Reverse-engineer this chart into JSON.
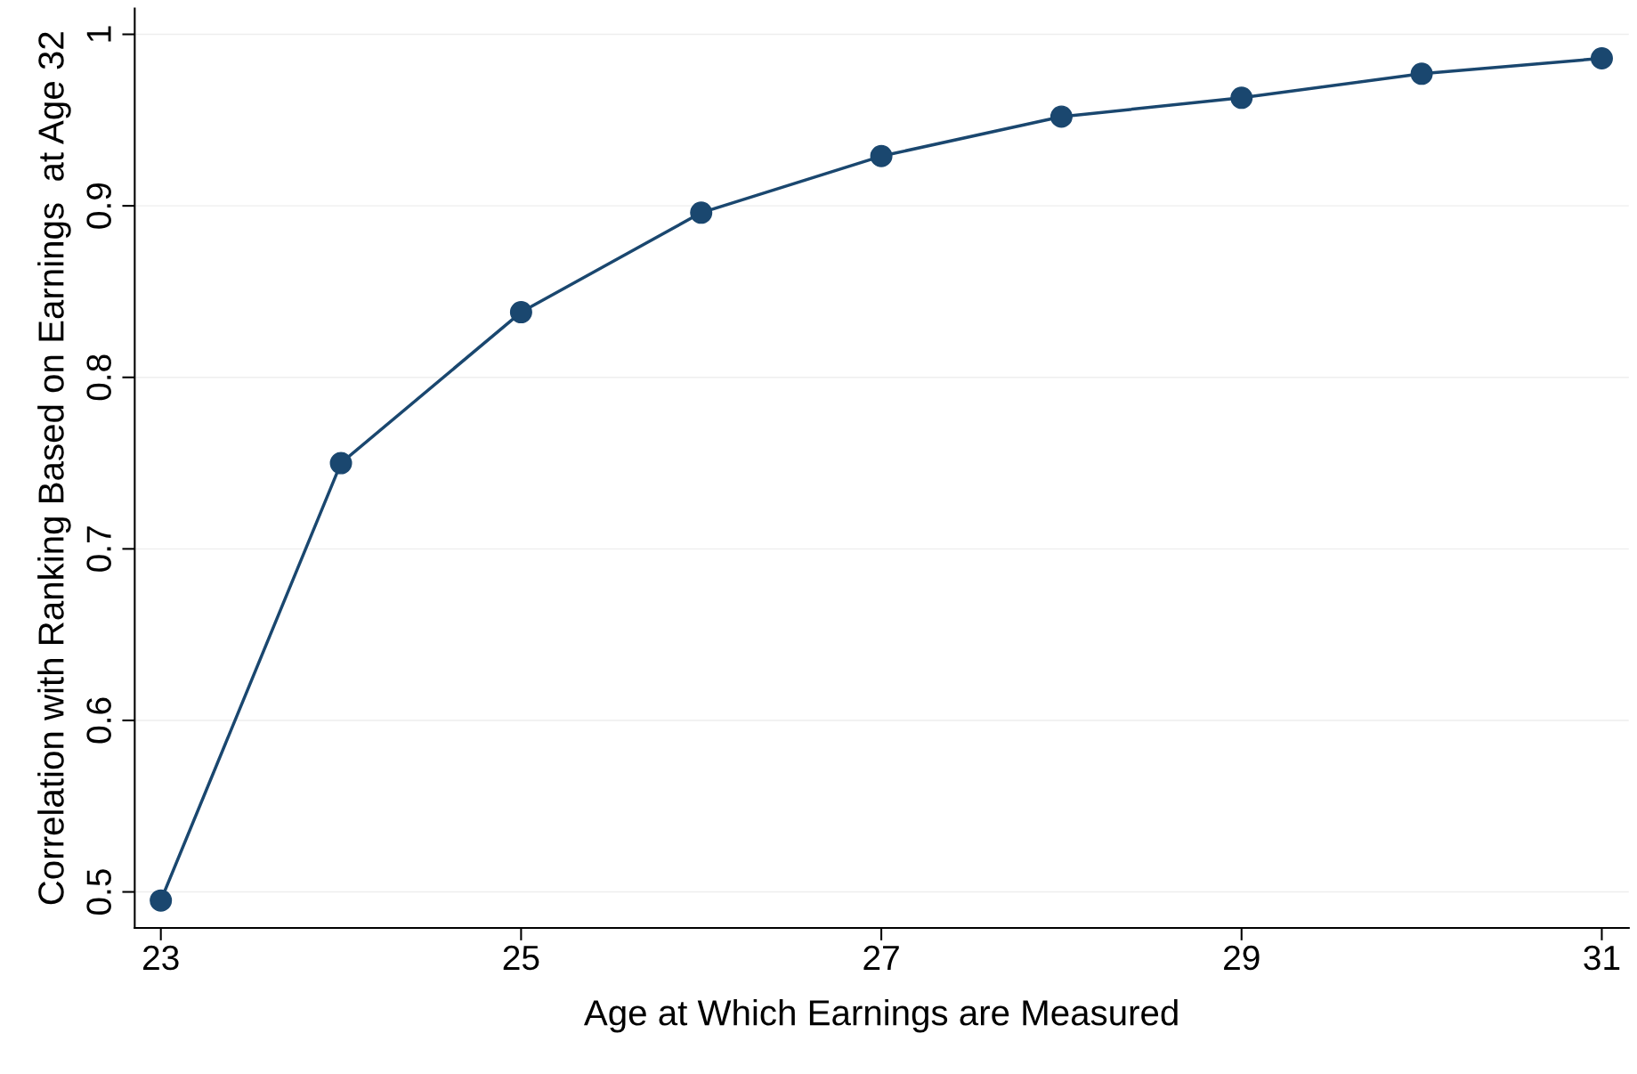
{
  "chart_data": {
    "type": "line",
    "xlabel": "Age at Which Earnings are Measured",
    "ylabel": "Correlation with Ranking Based on Earnings  at Age 32",
    "x": [
      23,
      24,
      25,
      26,
      27,
      28,
      29,
      30,
      31
    ],
    "series": [
      {
        "color": "#1a476f",
        "values": [
          0.495,
          0.75,
          0.838,
          0.896,
          0.929,
          0.952,
          0.963,
          0.977,
          0.986
        ]
      }
    ],
    "xlim": [
      22.855,
      31.15
    ],
    "xticks": [
      23,
      25,
      27,
      29,
      31
    ],
    "ylim": [
      0.479,
      1.015
    ],
    "yticks": [
      0.5,
      0.6,
      0.7,
      0.8,
      0.9,
      1
    ],
    "grid": "y",
    "marker": "circle",
    "line_style": "solid",
    "legend": false
  }
}
